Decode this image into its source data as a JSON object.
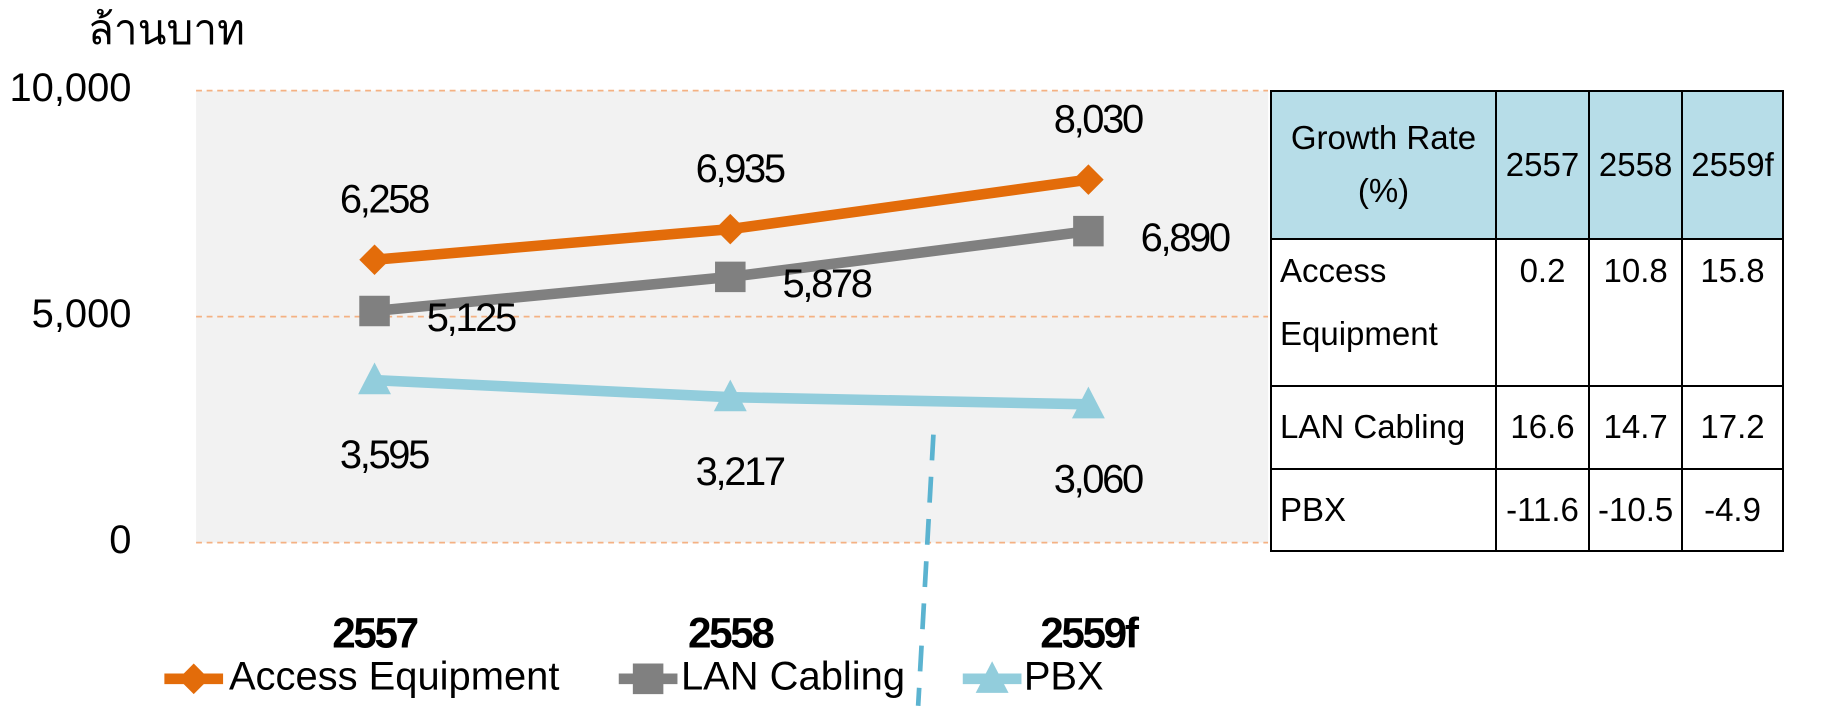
{
  "chart_data": {
    "type": "line",
    "ylabel": "ล้านบาท",
    "categories": [
      "2557",
      "2558",
      "2559f"
    ],
    "ylim": [
      0,
      10000
    ],
    "yticks": [
      0,
      {
        "value": 5000,
        "label": "5,000"
      },
      {
        "value": 10000,
        "label": "10,000"
      }
    ],
    "grid": true,
    "series": [
      {
        "name": "Access Equipment",
        "color": "#e36c0a",
        "marker": "diamond",
        "values": [
          6258,
          6935,
          8030
        ],
        "value_labels": [
          "6,258",
          "6,935",
          "8,030"
        ]
      },
      {
        "name": "LAN Cabling",
        "color": "#808080",
        "marker": "square",
        "values": [
          5125,
          5878,
          6890
        ],
        "value_labels": [
          "5,125",
          "5,878",
          "6,890"
        ]
      },
      {
        "name": "PBX",
        "color": "#92cddc",
        "marker": "triangle",
        "values": [
          3595,
          3217,
          3060
        ],
        "value_labels": [
          "3,595",
          "3,217",
          "3,060"
        ]
      }
    ]
  },
  "table": {
    "header": [
      "Growth Rate (%)",
      "2557",
      "2558",
      "2559f"
    ],
    "rows": [
      [
        "Access Equipment",
        "0.2",
        "10.8",
        "15.8"
      ],
      [
        "LAN Cabling",
        "16.6",
        "14.7",
        "17.2"
      ],
      [
        "PBX",
        "-11.6",
        "-10.5",
        "-4.9"
      ]
    ]
  }
}
